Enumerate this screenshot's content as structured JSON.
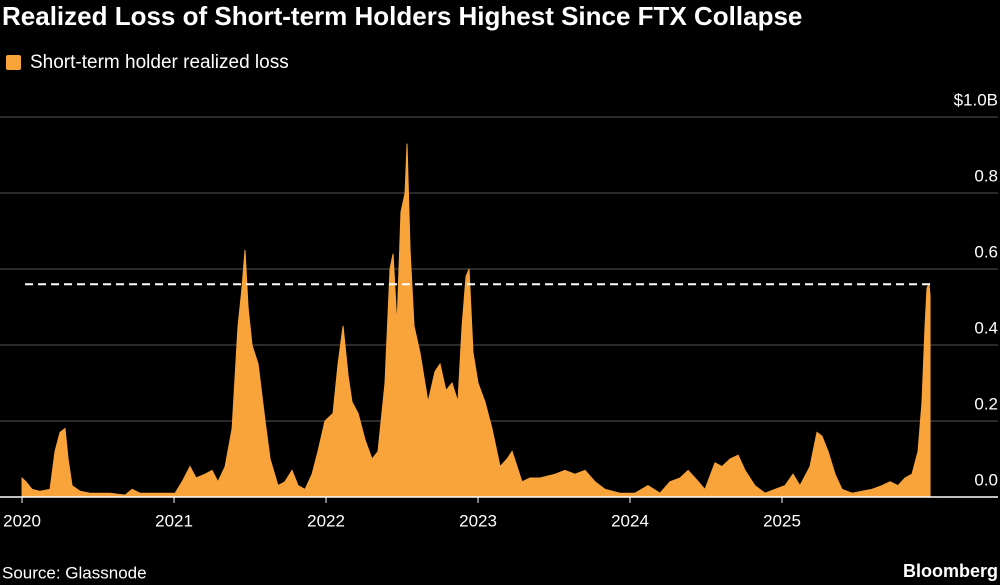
{
  "chart_data": {
    "type": "area",
    "title": "Realized Loss of Short-term Holders Highest Since FTX Collapse",
    "source": "Source: Glassnode",
    "credit": "Bloomberg",
    "reference_line": 0.56,
    "grid": true,
    "xlim": [
      2019.855,
      2026.421
    ],
    "xticks": [
      2020,
      2021,
      2022,
      2023,
      2024,
      2025
    ],
    "ylim": [
      0,
      1
    ],
    "yticks": [
      {
        "value": 0,
        "label": "0.0"
      },
      0.2,
      0.4,
      0.6,
      0.8,
      {
        "value": 1,
        "label": "$1.0B"
      }
    ],
    "x": [
      2020.0,
      2020.026,
      2020.066,
      2020.118,
      2020.184,
      2020.217,
      2020.25,
      2020.283,
      2020.303,
      2020.329,
      2020.382,
      2020.447,
      2020.579,
      2020.678,
      2020.724,
      2020.776,
      2020.908,
      2021.007,
      2021.053,
      2021.105,
      2021.145,
      2021.204,
      2021.25,
      2021.289,
      2021.336,
      2021.382,
      2021.421,
      2021.447,
      2021.467,
      2021.487,
      2021.513,
      2021.553,
      2021.599,
      2021.632,
      2021.684,
      2021.73,
      2021.776,
      2021.816,
      2021.862,
      2021.908,
      2021.947,
      2021.993,
      2022.046,
      2022.079,
      2022.112,
      2022.145,
      2022.171,
      2022.211,
      2022.257,
      2022.303,
      2022.342,
      2022.388,
      2022.421,
      2022.441,
      2022.467,
      2022.493,
      2022.52,
      2022.533,
      2022.553,
      2022.579,
      2022.618,
      2022.671,
      2022.717,
      2022.75,
      2022.789,
      2022.829,
      2022.868,
      2022.895,
      2022.921,
      2022.941,
      2022.967,
      2023.0,
      2023.046,
      2023.092,
      2023.145,
      2023.191,
      2023.224,
      2023.257,
      2023.289,
      2023.342,
      2023.408,
      2023.507,
      2023.572,
      2023.638,
      2023.704,
      2023.77,
      2023.836,
      2023.934,
      2024.033,
      2024.118,
      2024.197,
      2024.263,
      2024.329,
      2024.382,
      2024.428,
      2024.493,
      2024.559,
      2024.605,
      2024.658,
      2024.711,
      2024.757,
      2024.822,
      2024.888,
      2024.954,
      2025.02,
      2025.072,
      2025.118,
      2025.184,
      2025.23,
      2025.263,
      2025.303,
      2025.349,
      2025.395,
      2025.461,
      2025.526,
      2025.592,
      2025.658,
      2025.711,
      2025.763,
      2025.809,
      2025.855,
      2025.895,
      2025.921,
      2025.941,
      2025.954,
      2025.967,
      2025.974
    ],
    "series": [
      {
        "name": "Short-term holder realized loss",
        "color": "#f9a43a",
        "values": [
          0.05,
          0.04,
          0.02,
          0.015,
          0.02,
          0.12,
          0.17,
          0.18,
          0.1,
          0.03,
          0.015,
          0.01,
          0.01,
          0.005,
          0.02,
          0.01,
          0.01,
          0.01,
          0.04,
          0.08,
          0.05,
          0.06,
          0.07,
          0.04,
          0.08,
          0.18,
          0.45,
          0.55,
          0.65,
          0.5,
          0.4,
          0.35,
          0.2,
          0.1,
          0.03,
          0.04,
          0.07,
          0.03,
          0.02,
          0.06,
          0.12,
          0.2,
          0.22,
          0.35,
          0.45,
          0.32,
          0.25,
          0.22,
          0.15,
          0.1,
          0.12,
          0.3,
          0.6,
          0.64,
          0.45,
          0.75,
          0.8,
          0.93,
          0.65,
          0.45,
          0.38,
          0.25,
          0.33,
          0.35,
          0.28,
          0.3,
          0.25,
          0.45,
          0.58,
          0.6,
          0.38,
          0.3,
          0.25,
          0.18,
          0.08,
          0.1,
          0.12,
          0.08,
          0.04,
          0.05,
          0.05,
          0.06,
          0.07,
          0.06,
          0.07,
          0.04,
          0.02,
          0.01,
          0.01,
          0.03,
          0.01,
          0.04,
          0.05,
          0.07,
          0.05,
          0.02,
          0.09,
          0.08,
          0.1,
          0.11,
          0.07,
          0.03,
          0.01,
          0.02,
          0.03,
          0.06,
          0.03,
          0.08,
          0.17,
          0.16,
          0.12,
          0.06,
          0.02,
          0.01,
          0.015,
          0.02,
          0.03,
          0.04,
          0.03,
          0.05,
          0.06,
          0.12,
          0.25,
          0.45,
          0.55,
          0.56,
          0.53
        ]
      }
    ]
  }
}
